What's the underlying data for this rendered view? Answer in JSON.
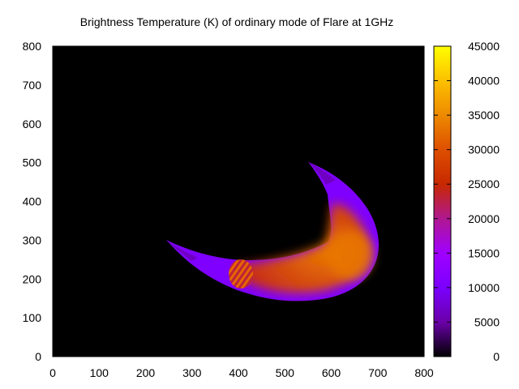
{
  "chart_data": {
    "type": "heatmap",
    "title": "Brightness Temperature (K) of ordinary mode of Flare at 1GHz",
    "xlabel": "",
    "ylabel": "",
    "xlim": [
      0,
      800
    ],
    "ylim": [
      0,
      800
    ],
    "x_ticks": [
      "0",
      "100",
      "200",
      "300",
      "400",
      "500",
      "600",
      "700",
      "800"
    ],
    "y_ticks": [
      "0",
      "100",
      "200",
      "300",
      "400",
      "500",
      "600",
      "700",
      "800"
    ],
    "colorbar": {
      "range": [
        0,
        45000
      ],
      "ticks": [
        "0",
        "5000",
        "10000",
        "15000",
        "20000",
        "25000",
        "30000",
        "35000",
        "40000",
        "45000"
      ],
      "colors": [
        "#000000",
        "#6a00a8",
        "#7b00ff",
        "#a000ff",
        "#b01890",
        "#c82800",
        "#dd4f00",
        "#ee8a00",
        "#fcc000",
        "#ffff00"
      ]
    },
    "background_value": 0,
    "regions": [
      {
        "name": "loop-envelope",
        "value": 10500
      },
      {
        "name": "loop-footpoint-tail",
        "value": 6500
      },
      {
        "name": "loop-core",
        "value": 30000
      },
      {
        "name": "loop-top-bright",
        "value": 33500
      },
      {
        "name": "striped-source",
        "value": 32000
      }
    ]
  }
}
